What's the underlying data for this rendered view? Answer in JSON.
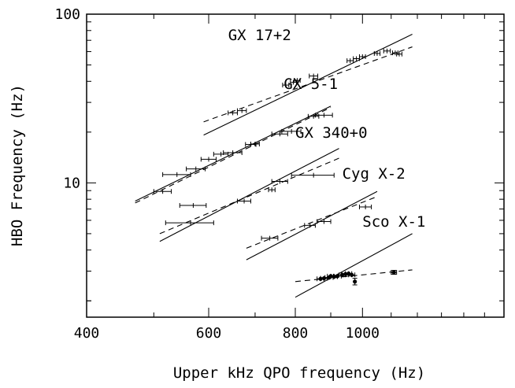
{
  "chart_data": {
    "type": "scatter",
    "title": "",
    "xlabel": "Upper kHz QPO frequency (Hz)",
    "ylabel": "HBO Frequency (Hz)",
    "x_scale": "log",
    "y_scale": "log",
    "xlim": [
      400,
      1600
    ],
    "ylim": [
      1.6,
      100
    ],
    "x_ticks": [
      400,
      600,
      800,
      1000
    ],
    "y_ticks": [
      10,
      100
    ],
    "grid": false,
    "legend": "none",
    "series": [
      {
        "name": "GX 17+2",
        "label_pos": [
          640,
          70
        ],
        "points": [
          {
            "x": 650,
            "y": 26.0,
            "xerr": 10
          },
          {
            "x": 670,
            "y": 26.8,
            "xerr": 10
          },
          {
            "x": 775,
            "y": 38.0,
            "xerr": 8
          },
          {
            "x": 795,
            "y": 39.5,
            "xerr": 8
          },
          {
            "x": 805,
            "y": 40.5,
            "xerr": 8
          },
          {
            "x": 850,
            "y": 43.0,
            "xerr": 12
          },
          {
            "x": 960,
            "y": 53.0,
            "xerr": 10
          },
          {
            "x": 980,
            "y": 54.5,
            "xerr": 10
          },
          {
            "x": 1000,
            "y": 56.0,
            "xerr": 10
          },
          {
            "x": 1050,
            "y": 58.5,
            "xerr": 10
          },
          {
            "x": 1085,
            "y": 60.5,
            "xerr": 12
          },
          {
            "x": 1115,
            "y": 59.0,
            "xerr": 10
          },
          {
            "x": 1130,
            "y": 58.0,
            "xerr": 10
          }
        ],
        "fit_solid": [
          [
            590,
            19.2
          ],
          [
            1180,
            76.0
          ]
        ],
        "fit_dashed": [
          [
            590,
            23.0
          ],
          [
            1180,
            64.0
          ]
        ]
      },
      {
        "name": "GX 5-1",
        "label_pos": [
          770,
          36
        ],
        "points": [
          {
            "x": 515,
            "y": 8.9,
            "xerr": 15
          },
          {
            "x": 540,
            "y": 11.2,
            "xerr": 25
          },
          {
            "x": 575,
            "y": 12.1,
            "xerr": 18
          },
          {
            "x": 600,
            "y": 13.8,
            "xerr": 15
          },
          {
            "x": 625,
            "y": 14.8,
            "xerr": 15
          },
          {
            "x": 650,
            "y": 15.1,
            "xerr": 20
          },
          {
            "x": 690,
            "y": 16.9,
            "xerr": 12
          },
          {
            "x": 700,
            "y": 17.0,
            "xerr": 10
          },
          {
            "x": 760,
            "y": 19.5,
            "xerr": 20
          },
          {
            "x": 790,
            "y": 20.2,
            "xerr": 25
          },
          {
            "x": 850,
            "y": 24.8,
            "xerr": 15
          },
          {
            "x": 880,
            "y": 25.2,
            "xerr": 25
          }
        ],
        "fit_solid": [
          [
            470,
            7.8
          ],
          [
            900,
            28.5
          ]
        ],
        "fit_dashed": [
          [
            470,
            7.6
          ],
          [
            900,
            28.0
          ]
        ]
      },
      {
        "name": "GX 340+0",
        "label_pos": [
          800,
          18.5
        ],
        "points": [
          {
            "x": 565,
            "y": 5.8,
            "xerr": 45
          },
          {
            "x": 570,
            "y": 7.35,
            "xerr": 25
          },
          {
            "x": 675,
            "y": 7.8,
            "xerr": 15
          },
          {
            "x": 740,
            "y": 9.1,
            "xerr": 8
          },
          {
            "x": 760,
            "y": 10.2,
            "xerr": 20
          },
          {
            "x": 850,
            "y": 11.1,
            "xerr": 60
          }
        ],
        "fit_solid": [
          [
            510,
            4.5
          ],
          [
            925,
            16.0
          ]
        ],
        "fit_dashed": [
          [
            510,
            5.0
          ],
          [
            925,
            14.0
          ]
        ]
      },
      {
        "name": "Cyg X-2",
        "label_pos": [
          935,
          10.6
        ],
        "points": [
          {
            "x": 735,
            "y": 4.7,
            "xerr": 20
          },
          {
            "x": 840,
            "y": 5.6,
            "xerr": 15
          },
          {
            "x": 880,
            "y": 5.9,
            "xerr": 20
          },
          {
            "x": 1010,
            "y": 7.2,
            "xerr": 20
          }
        ],
        "fit_solid": [
          [
            680,
            3.5
          ],
          [
            1050,
            8.9
          ]
        ],
        "fit_dashed": [
          [
            680,
            4.1
          ],
          [
            1050,
            8.3
          ]
        ]
      },
      {
        "name": "Sco X-1",
        "label_pos": [
          1000,
          5.5
        ],
        "points": [
          {
            "x": 870,
            "y": 2.7,
            "xerr": 10
          },
          {
            "x": 880,
            "y": 2.72,
            "xerr": 10
          },
          {
            "x": 895,
            "y": 2.75,
            "xerr": 12
          },
          {
            "x": 900,
            "y": 2.8,
            "xerr": 10
          },
          {
            "x": 910,
            "y": 2.78,
            "xerr": 10
          },
          {
            "x": 920,
            "y": 2.8,
            "xerr": 12
          },
          {
            "x": 935,
            "y": 2.85,
            "xerr": 10
          },
          {
            "x": 945,
            "y": 2.88,
            "xerr": 12
          },
          {
            "x": 955,
            "y": 2.9,
            "xerr": 10
          },
          {
            "x": 965,
            "y": 2.85,
            "xerr": 10
          },
          {
            "x": 975,
            "y": 2.6,
            "yerr": 0.12
          },
          {
            "x": 1110,
            "y": 2.95,
            "xerr": 10,
            "yerr": 0.08
          }
        ],
        "fit_solid": [
          [
            800,
            2.1
          ],
          [
            1180,
            5.0
          ]
        ],
        "fit_dashed": [
          [
            800,
            2.6
          ],
          [
            1180,
            3.05
          ]
        ]
      }
    ]
  }
}
